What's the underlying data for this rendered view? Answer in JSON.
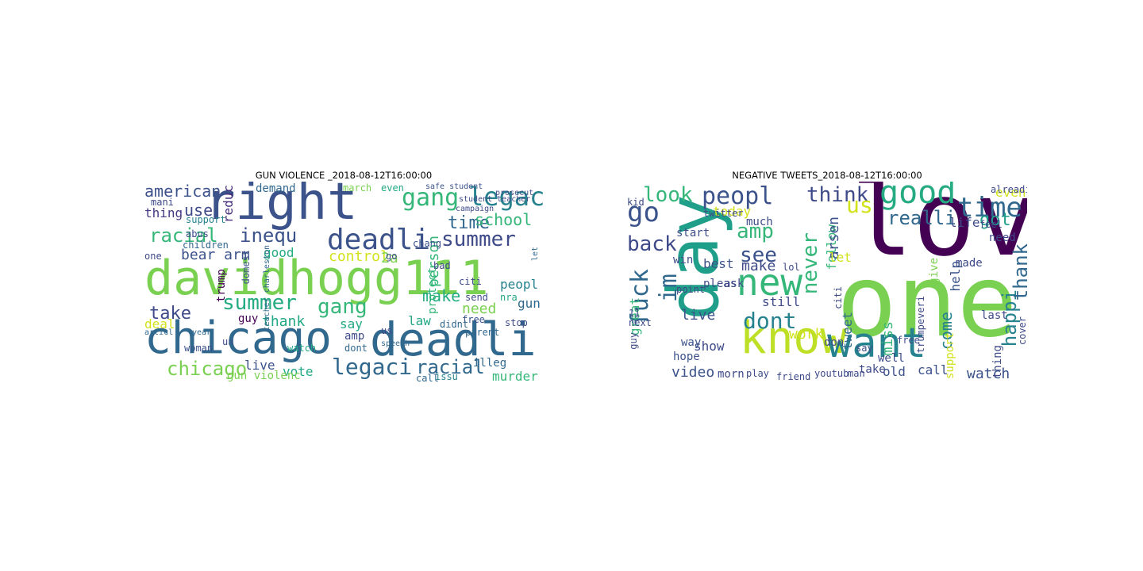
{
  "panels": [
    {
      "title": "GUN VIOLENCE _2018-08-12T16:00:00",
      "words": [
        {
          "t": "davidhogg111",
          "c": "#7ad151"
        },
        {
          "t": "right",
          "c": "#3b528b"
        },
        {
          "t": "chicago",
          "c": "#31688e"
        },
        {
          "t": "deadli",
          "c": "#31688e"
        },
        {
          "t": "deadli",
          "c": "#3b528b"
        },
        {
          "t": "summer",
          "c": "#3e4a89"
        },
        {
          "t": "legaci",
          "c": "#26828e"
        },
        {
          "t": "gang",
          "c": "#35b779"
        },
        {
          "t": "racial",
          "c": "#35b779"
        },
        {
          "t": "inequ",
          "c": "#3b528b"
        },
        {
          "t": "summer",
          "c": "#25ab82"
        },
        {
          "t": "gang",
          "c": "#35b779"
        },
        {
          "t": "time",
          "c": "#31688e"
        },
        {
          "t": "school",
          "c": "#35b779"
        },
        {
          "t": "chicago",
          "c": "#7ad151"
        },
        {
          "t": "legaci",
          "c": "#31688e"
        },
        {
          "t": "racial",
          "c": "#31688e"
        },
        {
          "t": "american",
          "c": "#3b528b"
        },
        {
          "t": "use",
          "c": "#3e4a89"
        },
        {
          "t": "thing",
          "c": "#443983"
        },
        {
          "t": "take",
          "c": "#3e4a89"
        },
        {
          "t": "bear arm",
          "c": "#3b528b"
        },
        {
          "t": "control",
          "c": "#d2e21b"
        },
        {
          "t": "good",
          "c": "#25ab82"
        },
        {
          "t": "make",
          "c": "#25ab82"
        },
        {
          "t": "need",
          "c": "#7ad151"
        },
        {
          "t": "gun",
          "c": "#31688e"
        },
        {
          "t": "thank",
          "c": "#22a884"
        },
        {
          "t": "guy",
          "c": "#440154"
        },
        {
          "t": "deal",
          "c": "#d2e21b"
        },
        {
          "t": "live",
          "c": "#3b528b"
        },
        {
          "t": "vote",
          "c": "#22a884"
        },
        {
          "t": "murder",
          "c": "#35b779"
        },
        {
          "t": "law",
          "c": "#22a884"
        },
        {
          "t": "say",
          "c": "#22a884"
        },
        {
          "t": "amp",
          "c": "#3e4a89"
        },
        {
          "t": "illeg",
          "c": "#31688e"
        },
        {
          "t": "peopl",
          "c": "#26828e"
        },
        {
          "t": "person",
          "c": "#35b779"
        },
        {
          "t": "demand",
          "c": "#31688e"
        },
        {
          "t": "march",
          "c": "#7ad151"
        },
        {
          "t": "even",
          "c": "#22a884"
        },
        {
          "t": "safe student",
          "c": "#3b528b"
        },
        {
          "t": "reduc",
          "c": "#472d7b"
        },
        {
          "t": "mani",
          "c": "#3e4a89"
        },
        {
          "t": "support",
          "c": "#26828e"
        },
        {
          "t": "abus",
          "c": "#3e4a89"
        },
        {
          "t": "children",
          "c": "#31688e"
        },
        {
          "t": "woman",
          "c": "#3b528b"
        },
        {
          "t": "watch",
          "c": "#22a884"
        },
        {
          "t": "gun violenc",
          "c": "#7ad151"
        },
        {
          "t": "one",
          "c": "#3e4a89"
        },
        {
          "t": "articl",
          "c": "#31688e"
        },
        {
          "t": "year",
          "c": "#31688e"
        },
        {
          "t": "trump",
          "c": "#440154"
        },
        {
          "t": "domest",
          "c": "#3b528b"
        },
        {
          "t": "2a",
          "c": "#7ad151"
        },
        {
          "t": "go",
          "c": "#3e4a89"
        },
        {
          "t": "bad",
          "c": "#3e4a89"
        },
        {
          "t": "chang",
          "c": "#3b528b"
        },
        {
          "t": "protect",
          "c": "#35b779"
        },
        {
          "t": "citi",
          "c": "#3e4a89"
        },
        {
          "t": "send",
          "c": "#3e4a89"
        },
        {
          "t": "nra",
          "c": "#22a884"
        },
        {
          "t": "free",
          "c": "#3b528b"
        },
        {
          "t": "parent",
          "c": "#31688e"
        },
        {
          "t": "stop",
          "c": "#3e4a89"
        },
        {
          "t": "didnt",
          "c": "#31688e"
        },
        {
          "t": "us",
          "c": "#3e4a89"
        },
        {
          "t": "dont",
          "c": "#31688e"
        },
        {
          "t": "call",
          "c": "#31688e"
        },
        {
          "t": "issu",
          "c": "#26828e"
        },
        {
          "t": "un",
          "c": "#3b528b"
        },
        {
          "t": "let",
          "c": "#31688e"
        },
        {
          "t": "teacher charleston",
          "c": "#31688e"
        },
        {
          "t": "student teacher",
          "c": "#3e4a89"
        },
        {
          "t": "campaign",
          "c": "#3e4a89"
        },
        {
          "t": "prosecut",
          "c": "#3e4a89"
        },
        {
          "t": "speech",
          "c": "#31688e"
        }
      ]
    },
    {
      "title": "NEGATIVE TWEETS_2018-08-12T16:00:00",
      "words": [
        {
          "t": "love",
          "c": "#440154"
        },
        {
          "t": "one",
          "c": "#7ad151"
        },
        {
          "t": "day",
          "c": "#1f9e89"
        },
        {
          "t": "know",
          "c": "#bddf26"
        },
        {
          "t": "want",
          "c": "#26828e"
        },
        {
          "t": "new",
          "c": "#35b779"
        },
        {
          "t": "good",
          "c": "#25ab82"
        },
        {
          "t": "time",
          "c": "#31688e"
        },
        {
          "t": "peopl",
          "c": "#3b528b"
        },
        {
          "t": "go",
          "c": "#3b528b"
        },
        {
          "t": "look",
          "c": "#35b779"
        },
        {
          "t": "think",
          "c": "#3e4a89"
        },
        {
          "t": "us",
          "c": "#d2e21b"
        },
        {
          "t": "amp",
          "c": "#35b779"
        },
        {
          "t": "see",
          "c": "#3b528b"
        },
        {
          "t": "dont",
          "c": "#26828e"
        },
        {
          "t": "back",
          "c": "#3e4a89"
        },
        {
          "t": "fuck",
          "c": "#31688e"
        },
        {
          "t": "im",
          "c": "#31688e"
        },
        {
          "t": "happi",
          "c": "#26828e"
        },
        {
          "t": "thank",
          "c": "#31688e"
        },
        {
          "t": "never",
          "c": "#35b779"
        },
        {
          "t": "realli",
          "c": "#31688e"
        },
        {
          "t": "got",
          "c": "#1f9e89"
        },
        {
          "t": "life",
          "c": "#3e4a89"
        },
        {
          "t": "make",
          "c": "#3e4a89"
        },
        {
          "t": "best",
          "c": "#3b528b"
        },
        {
          "t": "today",
          "c": "#d2e21b"
        },
        {
          "t": "much",
          "c": "#3e4a89"
        },
        {
          "t": "even",
          "c": "#d2e21b"
        },
        {
          "t": "need",
          "c": "#3e4a89"
        },
        {
          "t": "made",
          "c": "#3e4a89"
        },
        {
          "t": "come",
          "c": "#26828e"
        },
        {
          "t": "work",
          "c": "#d2e21b"
        },
        {
          "t": "still",
          "c": "#3e4a89"
        },
        {
          "t": "live",
          "c": "#3b528b"
        },
        {
          "t": "great",
          "c": "#35b779"
        },
        {
          "t": "video",
          "c": "#3b528b"
        },
        {
          "t": "show",
          "c": "#3e4a89"
        },
        {
          "t": "watch",
          "c": "#3b528b"
        },
        {
          "t": "call",
          "c": "#3b528b"
        },
        {
          "t": "old",
          "c": "#3b528b"
        },
        {
          "t": "take",
          "c": "#3e4a89"
        },
        {
          "t": "last",
          "c": "#3e4a89"
        },
        {
          "t": "help",
          "c": "#3b528b"
        },
        {
          "t": "miss",
          "c": "#35b779"
        },
        {
          "t": "tweet",
          "c": "#31688e"
        },
        {
          "t": "don",
          "c": "#3e4a89"
        },
        {
          "t": "follow",
          "c": "#35b779"
        },
        {
          "t": "arsen",
          "c": "#3b528b"
        },
        {
          "t": "let",
          "c": "#d2e21b"
        },
        {
          "t": "start",
          "c": "#3e4a89"
        },
        {
          "t": "win",
          "c": "#3e4a89"
        },
        {
          "t": "next",
          "c": "#3e4a89"
        },
        {
          "t": "way",
          "c": "#3b528b"
        },
        {
          "t": "hope",
          "c": "#3b528b"
        },
        {
          "t": "morn",
          "c": "#3e4a89"
        },
        {
          "t": "play",
          "c": "#3e4a89"
        },
        {
          "t": "friend",
          "c": "#3e4a89"
        },
        {
          "t": "youtub",
          "c": "#3e4a89"
        },
        {
          "t": "man",
          "c": "#3e4a89"
        },
        {
          "t": "pleas",
          "c": "#3e4a89"
        },
        {
          "t": "ask",
          "c": "#3e4a89"
        },
        {
          "t": "twitter",
          "c": "#3e4a89"
        },
        {
          "t": "kid",
          "c": "#3e4a89"
        },
        {
          "t": "lol",
          "c": "#3e4a89"
        },
        {
          "t": "feel",
          "c": "#3e4a89"
        },
        {
          "t": "give",
          "c": "#7ad151"
        },
        {
          "t": "support",
          "c": "#d2e21b"
        },
        {
          "t": "thing",
          "c": "#3e4a89"
        },
        {
          "t": "cover",
          "c": "#3e4a89"
        },
        {
          "t": "alreadi",
          "c": "#3e4a89"
        },
        {
          "t": "trumpeveri",
          "c": "#3e4a89"
        },
        {
          "t": "well",
          "c": "#3e4a89"
        },
        {
          "t": "free",
          "c": "#3e4a89"
        },
        {
          "t": "say",
          "c": "#3e4a89"
        },
        {
          "t": "citi",
          "c": "#3e4a89"
        },
        {
          "t": "guy",
          "c": "#3e4a89"
        },
        {
          "t": "11",
          "c": "#3e4a89"
        },
        {
          "t": "point",
          "c": "#3e4a89"
        }
      ]
    }
  ]
}
